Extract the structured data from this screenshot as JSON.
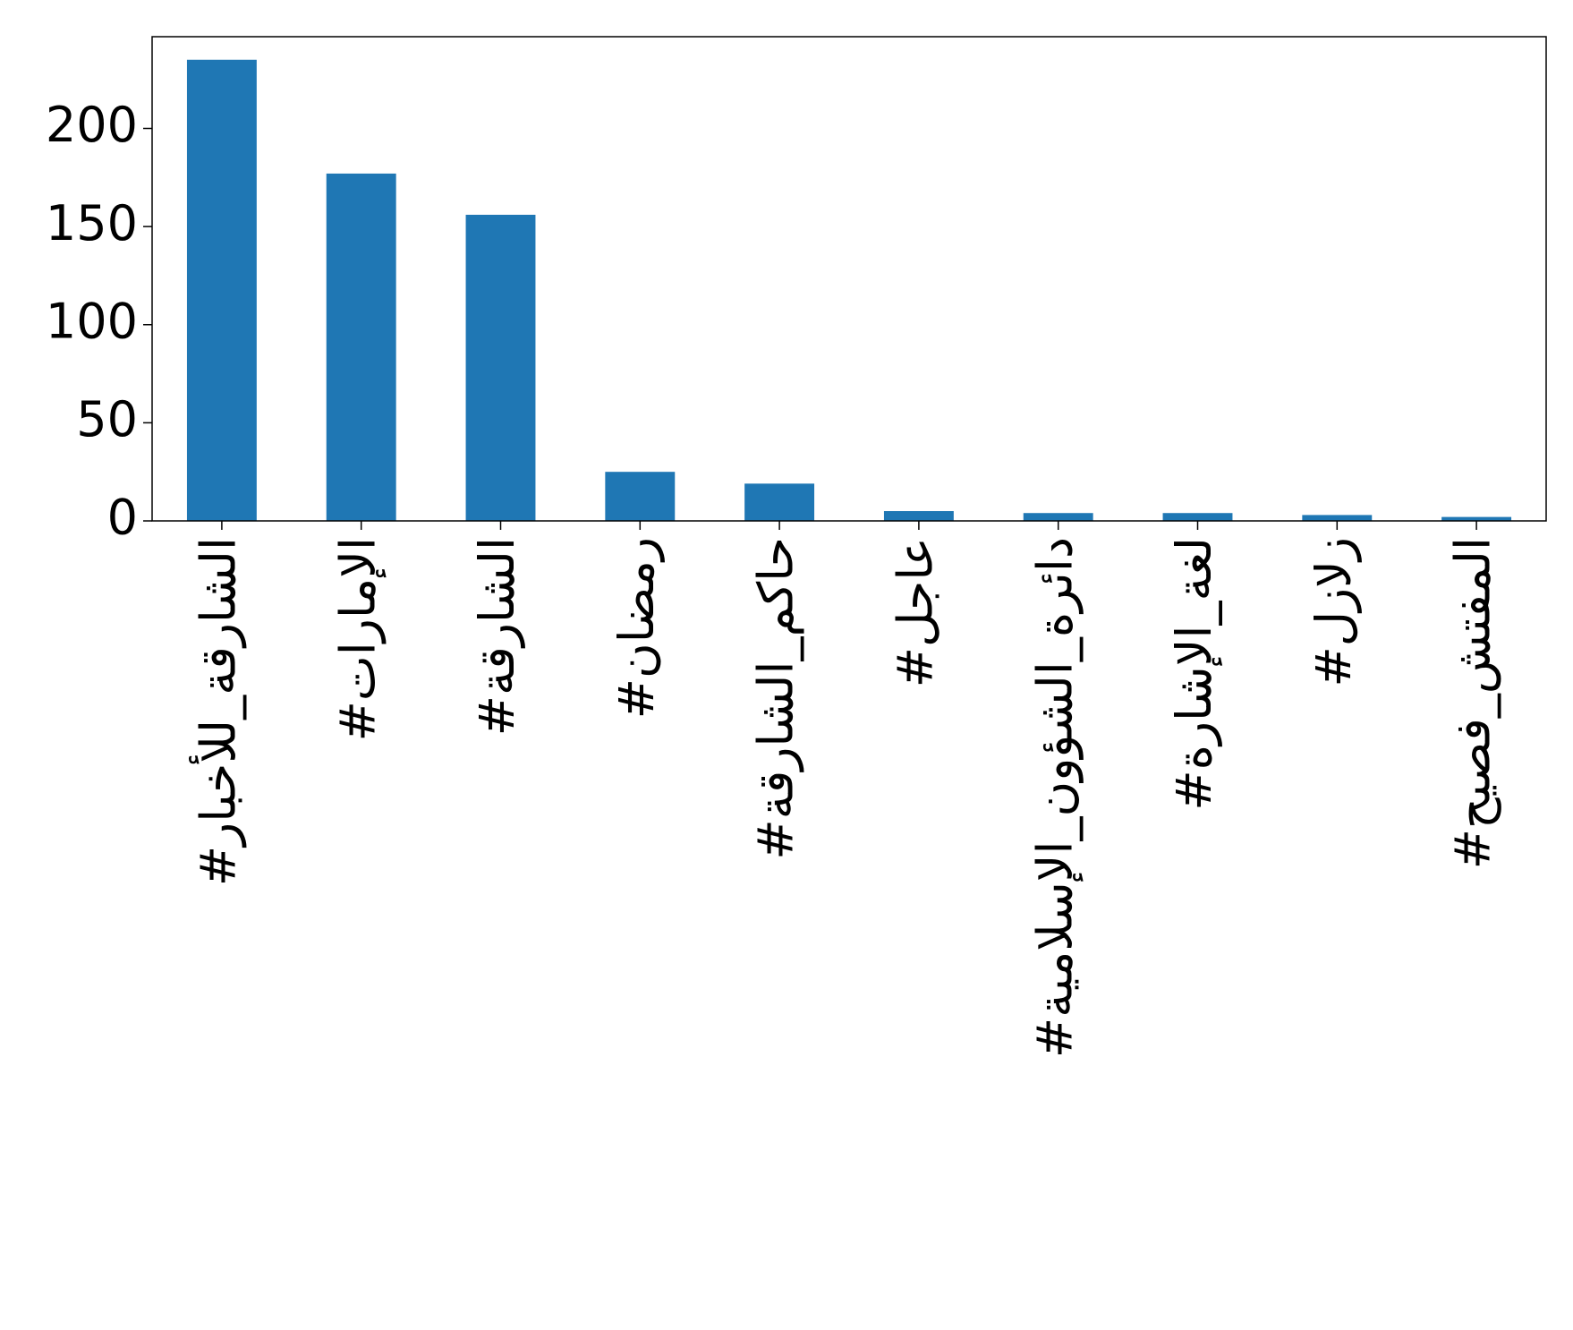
{
  "chart_data": {
    "type": "bar",
    "categories": [
      "#الشارقة_للأخبار",
      "#الإمارات",
      "#الشارقة",
      "#رمضان",
      "#حاكم_الشارقة",
      "#عاجل",
      "#دائرة_الشؤون_الإسلامية",
      "#لغة_الإشارة",
      "#زلازل",
      "#المفتش_فصيح"
    ],
    "values": [
      235,
      177,
      156,
      25,
      19,
      5,
      4,
      4,
      3,
      2
    ],
    "color": "#1f77b4",
    "ylim": [
      0,
      246.75
    ],
    "yticks": [
      0,
      50,
      100,
      150,
      200
    ],
    "grid": false
  }
}
